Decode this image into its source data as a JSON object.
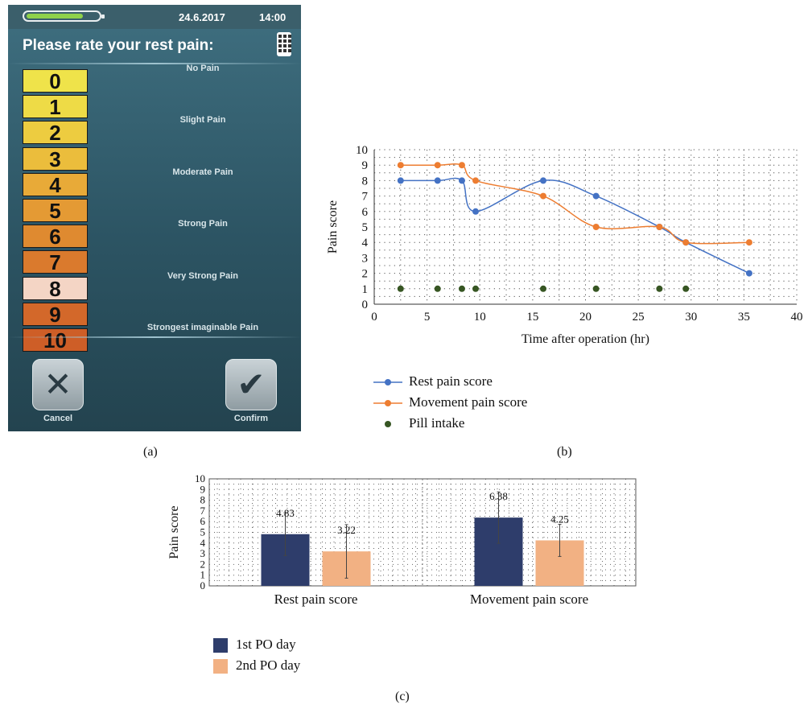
{
  "device": {
    "battery_level": 0.78,
    "date": "24.6.2017",
    "time": "14:00",
    "prompt": "Please rate your rest pain:",
    "keypad_icon": "keypad-icon",
    "scale": [
      {
        "value": "0",
        "label": "No Pain",
        "color": "#efe34a"
      },
      {
        "value": "1",
        "label": "",
        "color": "#eedb46"
      },
      {
        "value": "2",
        "label": "Slight Pain",
        "color": "#edcc40"
      },
      {
        "value": "3",
        "label": "",
        "color": "#ebbd3c"
      },
      {
        "value": "4",
        "label": "Moderate Pain",
        "color": "#e8aa38"
      },
      {
        "value": "5",
        "label": "",
        "color": "#e49a34"
      },
      {
        "value": "6",
        "label": "Strong Pain",
        "color": "#df8a30"
      },
      {
        "value": "7",
        "label": "",
        "color": "#da7a2d"
      },
      {
        "value": "8",
        "label": "Very Strong Pain",
        "color": "#f4d5c5"
      },
      {
        "value": "9",
        "label": "",
        "color": "#d3682a"
      },
      {
        "value": "10",
        "label": "Strongest imaginable Pain",
        "color": "#ce5e27"
      }
    ],
    "selected_value": "8",
    "cancel_icon": "close-icon",
    "confirm_icon": "checkmark-icon",
    "cancel_label": "Cancel",
    "confirm_label": "Confirm"
  },
  "captions": {
    "a": "(a)",
    "b": "(b)",
    "c": "(c)"
  },
  "chart_data": [
    {
      "type": "line",
      "xlabel": "Time after operation (hr)",
      "ylabel": "Pain score",
      "xlim": [
        0,
        40
      ],
      "ylim": [
        0,
        10
      ],
      "x_ticks": [
        "0",
        "5",
        "10",
        "15",
        "20",
        "25",
        "30",
        "35",
        "40"
      ],
      "y_ticks": [
        "0",
        "1",
        "2",
        "3",
        "4",
        "5",
        "6",
        "7",
        "8",
        "9",
        "10"
      ],
      "grid": true,
      "legend_position": "bottom-left",
      "series": [
        {
          "name": "Rest pain score",
          "color": "#4472c4",
          "x": [
            2.5,
            6,
            8.3,
            9.6,
            16,
            21,
            27,
            29.5,
            35.5
          ],
          "y": [
            8,
            8,
            8,
            6,
            8,
            7,
            5,
            4,
            2
          ]
        },
        {
          "name": "Movement pain score",
          "color": "#ed7d31",
          "x": [
            2.5,
            6,
            8.3,
            9.6,
            16,
            21,
            27,
            29.5,
            35.5
          ],
          "y": [
            9,
            9,
            9,
            8,
            7,
            5,
            5,
            4,
            4
          ]
        },
        {
          "name": "Pill intake",
          "color": "#375623",
          "marker_only": true,
          "x": [
            2.5,
            6,
            8.3,
            9.6,
            16,
            21,
            27,
            29.5
          ],
          "y": [
            1,
            1,
            1,
            1,
            1,
            1,
            1,
            1
          ]
        }
      ]
    },
    {
      "type": "bar",
      "ylabel": "Pain score",
      "ylim": [
        0,
        10
      ],
      "y_ticks": [
        "0",
        "1",
        "2",
        "3",
        "4",
        "5",
        "6",
        "7",
        "8",
        "9",
        "10"
      ],
      "grid": true,
      "legend_position": "bottom-left",
      "categories": [
        "Rest pain score",
        "Movement pain score"
      ],
      "series": [
        {
          "name": "1st PO day",
          "color": "#2e3d6b",
          "values": [
            4.83,
            6.38
          ],
          "errors": [
            2.0,
            2.4
          ],
          "labels": [
            "4.83",
            "6.38"
          ]
        },
        {
          "name": "2nd PO day",
          "color": "#f2b183",
          "values": [
            3.22,
            4.25
          ],
          "errors": [
            2.5,
            1.5
          ],
          "labels": [
            "3.22",
            "4.25"
          ]
        }
      ]
    }
  ]
}
